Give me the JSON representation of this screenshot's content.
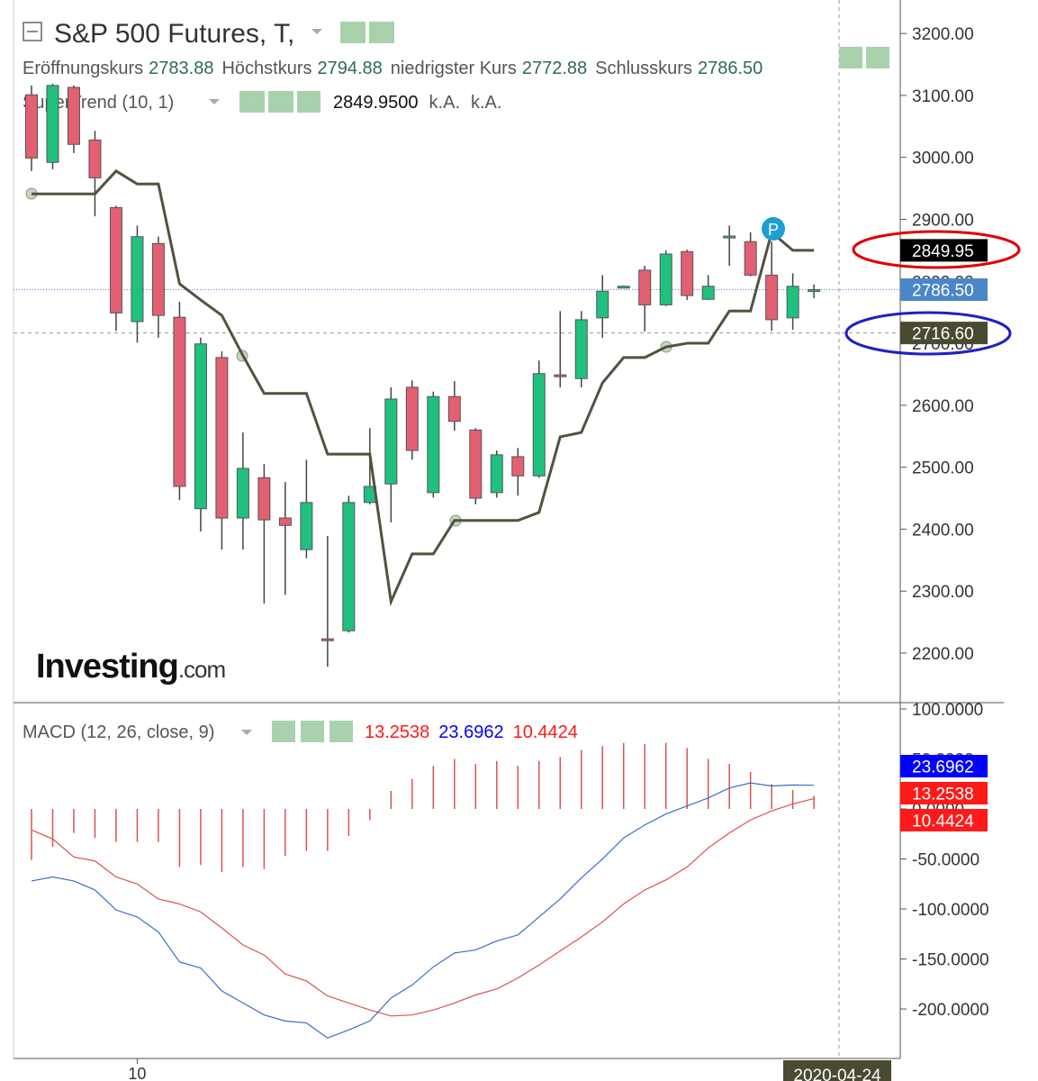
{
  "chart_data": [
    {
      "type": "candlestick",
      "title": "S&P 500 Futures, T,",
      "categories": [
        null,
        null,
        null,
        null,
        null,
        "10",
        null,
        null,
        null,
        null,
        null,
        null,
        null,
        null,
        null,
        null,
        null,
        null,
        null,
        null,
        null,
        null,
        null,
        null,
        null,
        null,
        null,
        null,
        null,
        null,
        null,
        null,
        null,
        null,
        null,
        null,
        null,
        null
      ],
      "open": [
        3101,
        2992,
        3113,
        3028,
        2919,
        2735,
        2861,
        2742,
        2433,
        2677,
        2418,
        2483,
        2418,
        2367,
        2223,
        2236,
        2443,
        2473,
        2629,
        2459,
        2614,
        2560,
        2459,
        2517,
        2486,
        2649,
        2643,
        2741,
        2791,
        2818,
        2762,
        2848,
        2771,
        2870,
        2864,
        2810,
        2741,
        2783.88
      ],
      "high": [
        3116,
        3119,
        3116,
        3043,
        2922,
        2890,
        2872,
        2767,
        2709,
        2687,
        2556,
        2505,
        2476,
        2512,
        2389,
        2454,
        2563,
        2629,
        2640,
        2622,
        2639,
        2563,
        2527,
        2531,
        2672,
        2752,
        2752,
        2810,
        2793,
        2825,
        2850,
        2851,
        2810,
        2890,
        2879,
        2864,
        2813,
        2794.88
      ],
      "low": [
        2978,
        2981,
        3007,
        2905,
        2720,
        2701,
        2709,
        2447,
        2396,
        2367,
        2367,
        2280,
        2294,
        2353,
        2178,
        2233,
        2440,
        2411,
        2512,
        2451,
        2559,
        2440,
        2451,
        2454,
        2483,
        2629,
        2629,
        2709,
        2790,
        2719,
        2760,
        2770,
        2770,
        2825,
        2808,
        2720,
        2722,
        2772.88
      ],
      "close": [
        2999,
        3116,
        3021,
        2967,
        2749,
        2872,
        2745,
        2469,
        2699,
        2418,
        2498,
        2415,
        2406,
        2443,
        2220,
        2443,
        2469,
        2610,
        2527,
        2614,
        2574,
        2450,
        2520,
        2486,
        2651,
        2646,
        2738,
        2784,
        2792,
        2762,
        2844,
        2777,
        2792,
        2873,
        2810,
        2738,
        2792,
        2786.5
      ],
      "up_color": "#20c07f",
      "down_color": "#e35f72",
      "ohlc_legend": [
        {
          "name": "Eröffnungskurs",
          "value": "2783.88"
        },
        {
          "name": "Höchstkurs",
          "value": "2794.88"
        },
        {
          "name": "niedrigster Kurs",
          "value": "2772.88"
        },
        {
          "name": "Schlusskurs",
          "value": "2786.50"
        }
      ],
      "series": [
        {
          "name": "SuperTrend (10, 1)",
          "color": "#50533f",
          "values": [
            2941,
            2941,
            2941,
            2941,
            2978,
            2957,
            2957,
            2796,
            2770,
            2745,
            2680,
            2619,
            2619,
            2619,
            2521,
            2521,
            2521,
            2283,
            2360,
            2360,
            2414,
            2414,
            2414,
            2414,
            2427,
            2549,
            2556,
            2636,
            2677,
            2677,
            2694,
            2700,
            2700,
            2752,
            2752,
            2879,
            2850,
            2849.95
          ],
          "legend_values": [
            "2849.9500",
            "k.A.",
            "k.A."
          ]
        }
      ],
      "price_tags": [
        {
          "value": 2849.95,
          "label": "2849.95",
          "color": "#000000"
        },
        {
          "value": 2786.5,
          "label": "2786.50",
          "color": "#4a86c8",
          "line": "dotted"
        }
      ],
      "crosshair": {
        "value": 2716.6,
        "label": "2716.60",
        "color": "#4a4a32",
        "x_label": "2020-04-24"
      },
      "marker_label": "P",
      "watermark": [
        "Investing",
        ".com"
      ],
      "ylim": [
        2120,
        3254
      ],
      "yticks": [
        {
          "value": 2200,
          "label": "2200.00"
        },
        {
          "value": 2300,
          "label": "2300.00"
        },
        {
          "value": 2400,
          "label": "2400.00"
        },
        {
          "value": 2500,
          "label": "2500.00"
        },
        {
          "value": 2600,
          "label": "2600.00"
        },
        {
          "value": 2700,
          "label": "2700.00"
        },
        {
          "value": 2800,
          "label": "2800.00"
        },
        {
          "value": 2900,
          "label": "2900.00"
        },
        {
          "value": 3000,
          "label": "3000.00"
        },
        {
          "value": 3100,
          "label": "3100.00"
        },
        {
          "value": 3200,
          "label": "3200.00"
        }
      ]
    },
    {
      "type": "macd",
      "title": "MACD (12, 26, close, 9)",
      "histogram": {
        "color": "#d9534f",
        "tag_color": "#ff1a1a",
        "tag_label": "13.2538",
        "values": [
          -51,
          -38,
          -24,
          -29,
          -33,
          -33,
          -33,
          -58,
          -56,
          -63,
          -58,
          -60,
          -47,
          -42,
          -42,
          -27,
          -11,
          18,
          30,
          43,
          50,
          45,
          48,
          43,
          48,
          52,
          59,
          63,
          66,
          65,
          66,
          61,
          50,
          45,
          37,
          25,
          19,
          13.2538
        ]
      },
      "macd": {
        "color": "#3a6fc4",
        "tag_color": "#0000ff",
        "tag_label": "23.6962",
        "values": [
          -72,
          -68,
          -72,
          -81,
          -101,
          -108,
          -123,
          -153,
          -159,
          -182,
          -194,
          -206,
          -212,
          -214,
          -229,
          -221,
          -212,
          -189,
          -176,
          -158,
          -144,
          -141,
          -132,
          -126,
          -108,
          -90,
          -69,
          -50,
          -29,
          -16,
          -5,
          3,
          11,
          21,
          26,
          23,
          24,
          23.6962
        ]
      },
      "signal": {
        "color": "#d9534f",
        "tag_color": "#ff1a1a",
        "tag_label": "10.4424",
        "values": [
          -21,
          -30,
          -48,
          -52,
          -68,
          -75,
          -90,
          -95,
          -103,
          -119,
          -136,
          -146,
          -165,
          -172,
          -187,
          -194,
          -201,
          -207,
          -206,
          -201,
          -194,
          -186,
          -180,
          -169,
          -156,
          -142,
          -128,
          -113,
          -95,
          -81,
          -71,
          -58,
          -39,
          -24,
          -11,
          -2,
          5,
          10.4424
        ]
      },
      "ylim": [
        -249.5,
        104.5
      ],
      "yticks": [
        {
          "value": 100,
          "label": "100.0000"
        },
        {
          "value": 50,
          "label": "50.0000"
        },
        {
          "value": 0,
          "label": "0.0000"
        },
        {
          "value": -50,
          "label": "-50.0000"
        },
        {
          "value": -100,
          "label": "-100.0000"
        },
        {
          "value": -150,
          "label": "-150.0000"
        },
        {
          "value": -200,
          "label": "-200.0000"
        }
      ]
    }
  ]
}
